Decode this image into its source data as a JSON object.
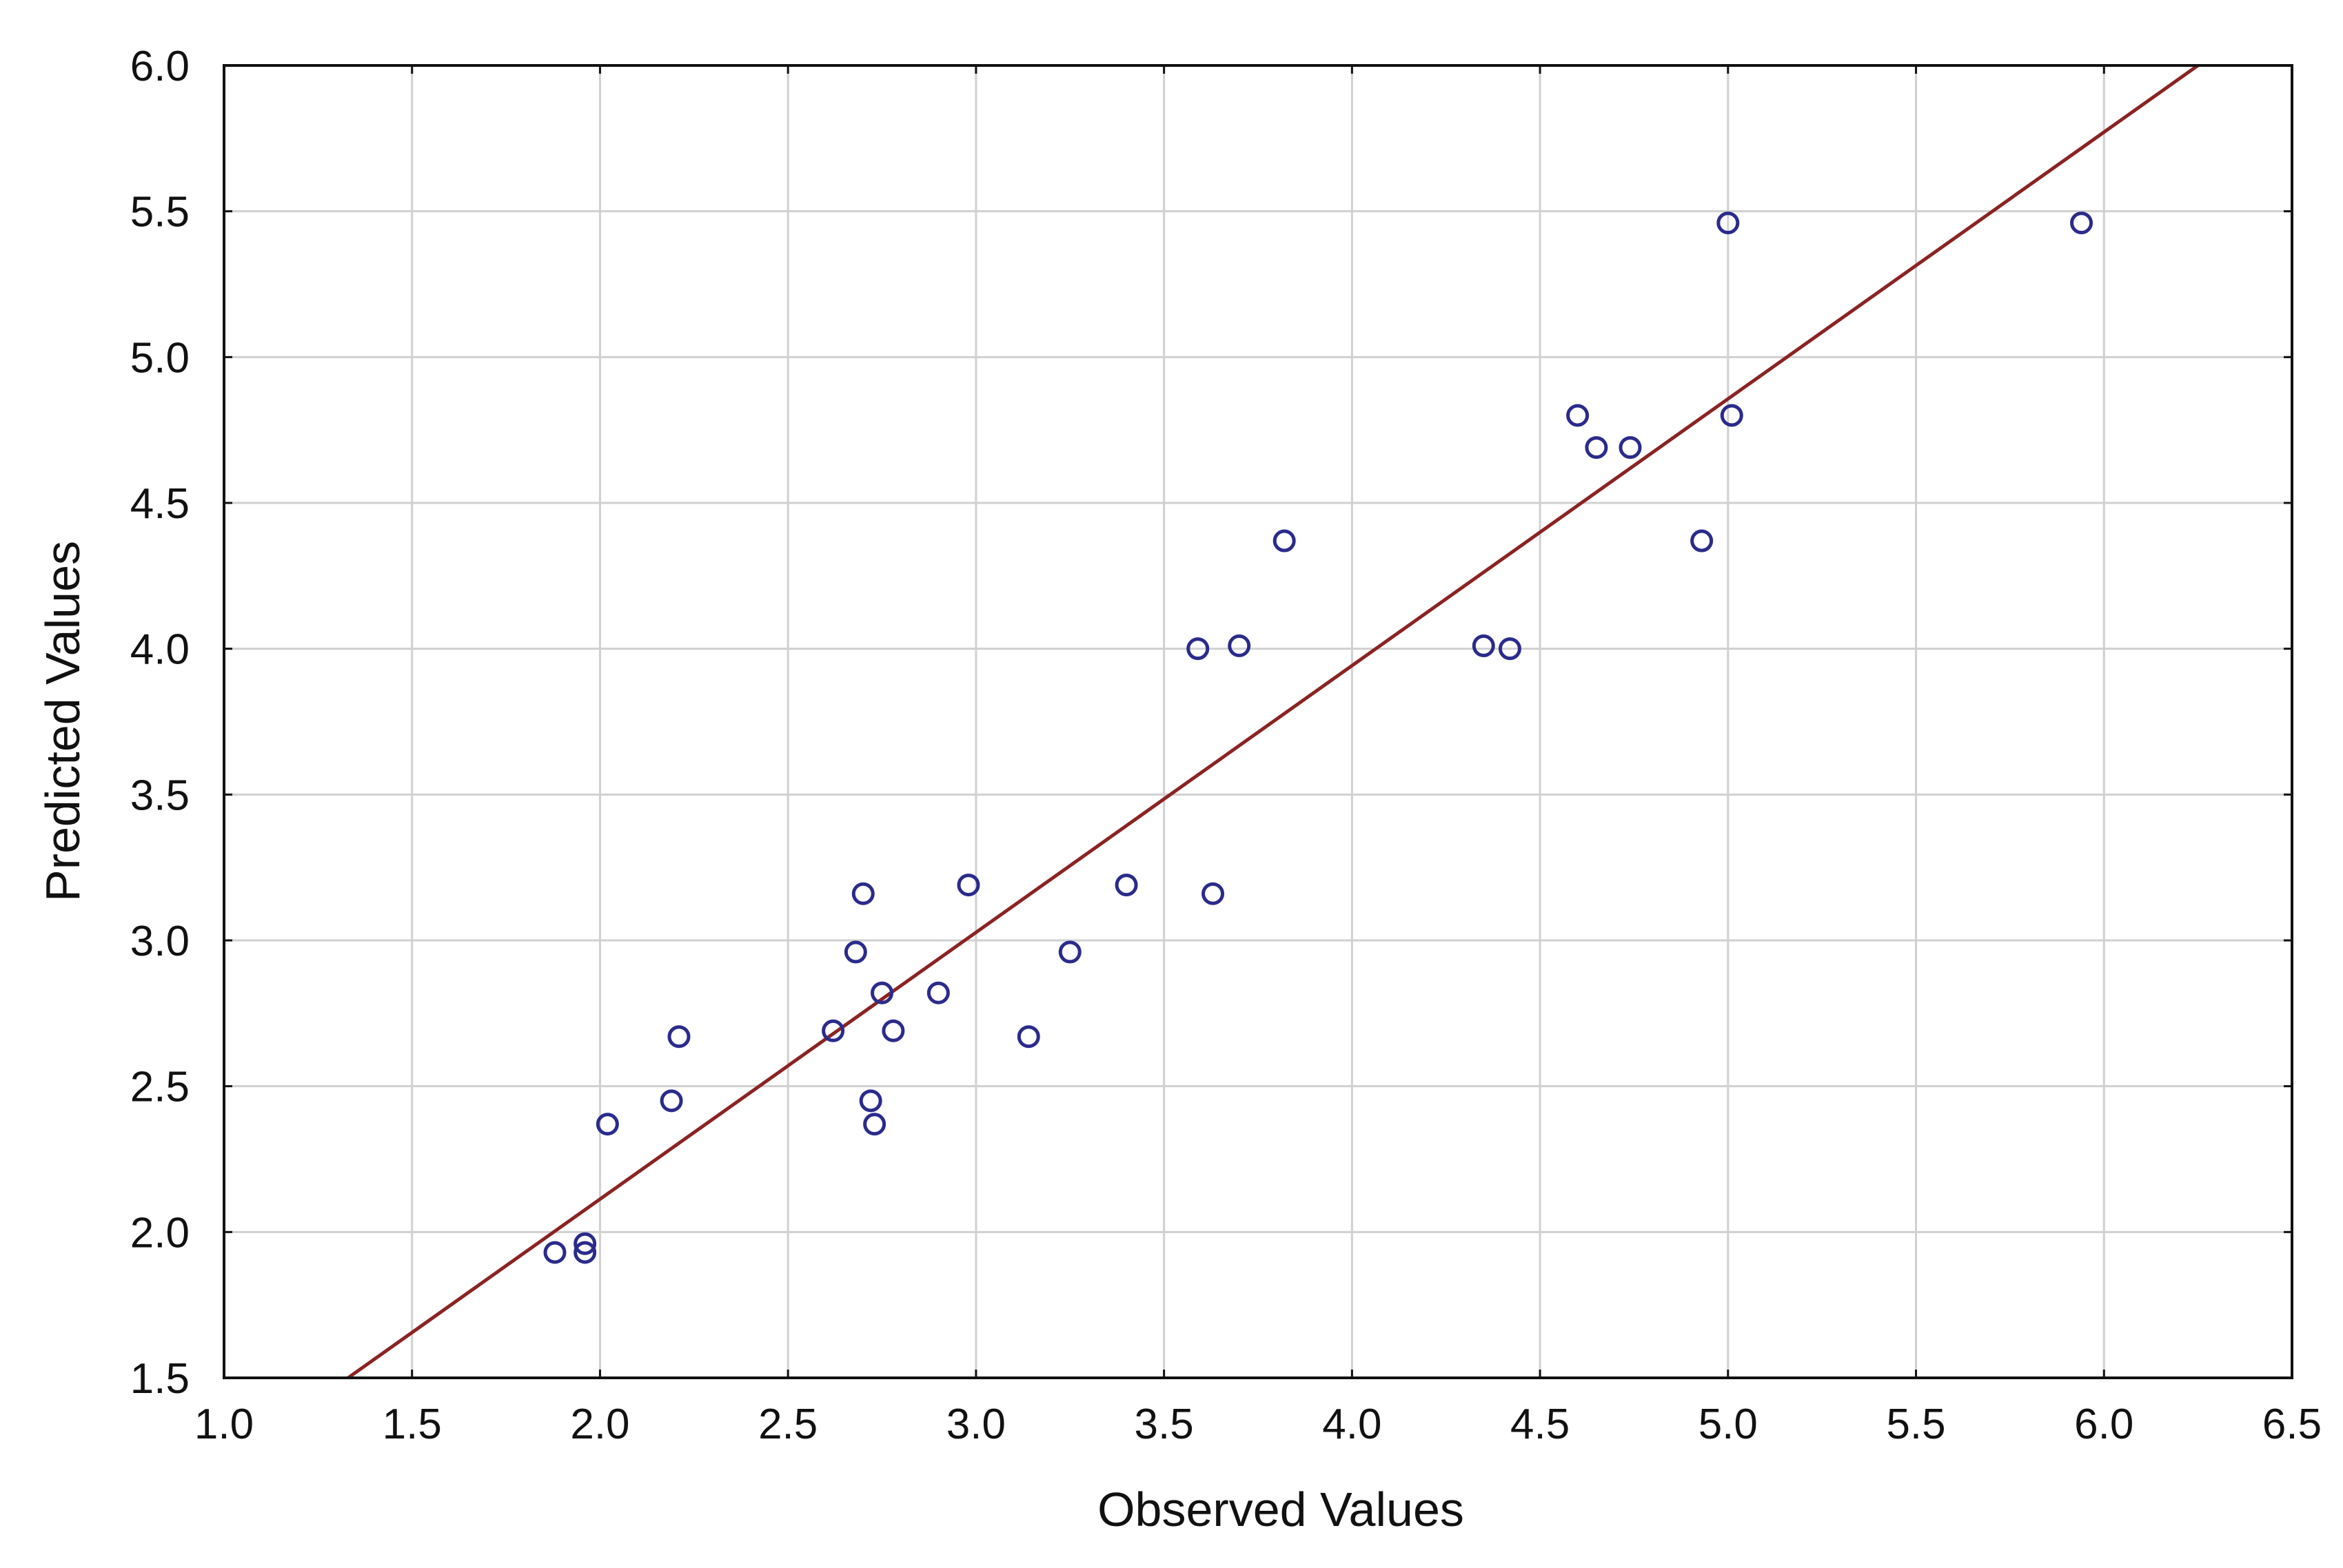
{
  "chart_data": {
    "type": "scatter",
    "title": "",
    "xlabel": "Observed Values",
    "ylabel": "Predicted Values",
    "xlim": [
      1.0,
      6.5
    ],
    "ylim": [
      1.5,
      6.0
    ],
    "xticks": [
      "1.0",
      "1.5",
      "2.0",
      "2.5",
      "3.0",
      "3.5",
      "4.0",
      "4.5",
      "5.0",
      "5.5",
      "6.0",
      "6.5"
    ],
    "yticks": [
      "1.5",
      "2.0",
      "2.5",
      "3.0",
      "3.5",
      "4.0",
      "4.5",
      "5.0",
      "5.5",
      "6.0"
    ],
    "grid": true,
    "colors": {
      "points": "#2b2b8c",
      "fit_line": "#8b2323",
      "grid": "#d0d0d0",
      "frame": "#111111"
    },
    "points": [
      {
        "x": 1.88,
        "y": 1.93
      },
      {
        "x": 1.96,
        "y": 1.96
      },
      {
        "x": 1.96,
        "y": 1.93
      },
      {
        "x": 2.02,
        "y": 2.37
      },
      {
        "x": 2.19,
        "y": 2.45
      },
      {
        "x": 2.21,
        "y": 2.67
      },
      {
        "x": 2.62,
        "y": 2.69
      },
      {
        "x": 2.68,
        "y": 2.96
      },
      {
        "x": 2.7,
        "y": 3.16
      },
      {
        "x": 2.72,
        "y": 2.45
      },
      {
        "x": 2.73,
        "y": 2.37
      },
      {
        "x": 2.75,
        "y": 2.82
      },
      {
        "x": 2.78,
        "y": 2.69
      },
      {
        "x": 2.9,
        "y": 2.82
      },
      {
        "x": 2.98,
        "y": 3.19
      },
      {
        "x": 3.14,
        "y": 2.67
      },
      {
        "x": 3.25,
        "y": 2.96
      },
      {
        "x": 3.4,
        "y": 3.19
      },
      {
        "x": 3.59,
        "y": 4.0
      },
      {
        "x": 3.63,
        "y": 3.16
      },
      {
        "x": 3.7,
        "y": 4.01
      },
      {
        "x": 3.82,
        "y": 4.37
      },
      {
        "x": 4.35,
        "y": 4.01
      },
      {
        "x": 4.42,
        "y": 4.0
      },
      {
        "x": 4.6,
        "y": 4.8
      },
      {
        "x": 4.65,
        "y": 4.69
      },
      {
        "x": 4.74,
        "y": 4.69
      },
      {
        "x": 4.93,
        "y": 4.37
      },
      {
        "x": 5.0,
        "y": 5.46
      },
      {
        "x": 5.01,
        "y": 4.8
      },
      {
        "x": 5.94,
        "y": 5.46
      }
    ],
    "fit_line": {
      "x": [
        1.33,
        6.25
      ],
      "y": [
        1.5,
        6.0
      ]
    }
  }
}
